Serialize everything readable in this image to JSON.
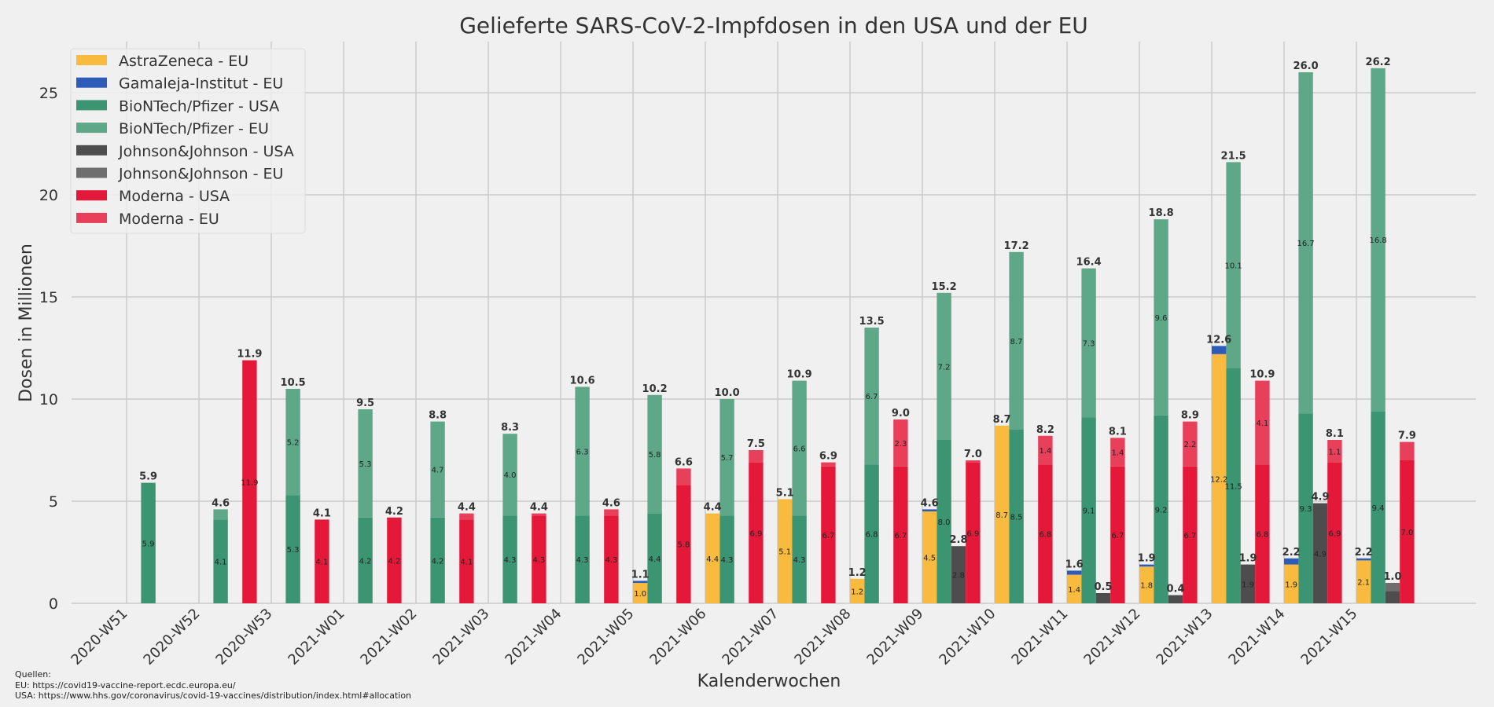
{
  "chart_data": {
    "type": "bar",
    "title": "Gelieferte SARS-CoV-2-Impfdosen in den USA und der EU",
    "xlabel": "Kalenderwochen",
    "ylabel": "Dosen in Millionen",
    "ylim": [
      0,
      27.5
    ],
    "yticks": [
      0,
      5,
      10,
      15,
      20,
      25
    ],
    "grid": true,
    "legend_position": "top-left",
    "categories": [
      "2020-W51",
      "2020-W52",
      "2020-W53",
      "2021-W01",
      "2021-W02",
      "2021-W03",
      "2021-W04",
      "2021-W05",
      "2021-W06",
      "2021-W07",
      "2021-W08",
      "2021-W09",
      "2021-W10",
      "2021-W11",
      "2021-W12",
      "2021-W13",
      "2021-W14",
      "2021-W15"
    ],
    "series": [
      {
        "name": "AstraZeneca - EU",
        "color": "#f8bb40",
        "group": "astrazeneca",
        "values": [
          0,
          0,
          0,
          0,
          0,
          0,
          0,
          1.0,
          4.4,
          5.1,
          1.2,
          4.5,
          8.7,
          1.4,
          1.8,
          12.2,
          1.9,
          2.1
        ]
      },
      {
        "name": "Gamaleja-Institut - EU",
        "color": "#2f5bb8",
        "group": "astrazeneca",
        "values": [
          0,
          0,
          0,
          0,
          0,
          0,
          0,
          0.1,
          0,
          0,
          0,
          0.1,
          0,
          0.2,
          0.1,
          0.4,
          0.3,
          0.1
        ]
      },
      {
        "name": "BioNTech/Pfizer - USA",
        "color": "#3b9472",
        "group": "biontech",
        "values": [
          5.9,
          4.1,
          5.3,
          4.2,
          4.2,
          4.3,
          4.3,
          4.4,
          4.3,
          4.3,
          6.8,
          8.0,
          8.5,
          9.1,
          9.2,
          11.5,
          9.3,
          9.4
        ]
      },
      {
        "name": "BioNTech/Pfizer - EU",
        "color": "#5ea889",
        "group": "biontech",
        "values": [
          0,
          0.5,
          5.2,
          5.3,
          4.7,
          4.0,
          6.3,
          5.8,
          5.7,
          6.6,
          6.7,
          7.2,
          8.7,
          7.3,
          9.6,
          10.1,
          16.7,
          16.8
        ]
      },
      {
        "name": "Johnson&Johnson - USA",
        "color": "#4d4d4d",
        "group": "jnj",
        "values": [
          0,
          0,
          0,
          0,
          0,
          0,
          0,
          0,
          0,
          0,
          0,
          2.8,
          0,
          0.5,
          0.4,
          1.9,
          4.9,
          0.6
        ]
      },
      {
        "name": "Johnson&Johnson - EU",
        "color": "#6e6e6e",
        "group": "jnj",
        "values": [
          0,
          0,
          0,
          0,
          0,
          0,
          0,
          0,
          0,
          0,
          0,
          0,
          0,
          0,
          0,
          0,
          0,
          0.4
        ]
      },
      {
        "name": "Moderna - USA",
        "color": "#e4193a",
        "group": "moderna",
        "values": [
          0,
          11.9,
          4.1,
          4.2,
          4.1,
          4.3,
          4.3,
          5.8,
          6.9,
          6.7,
          6.7,
          6.9,
          6.8,
          6.7,
          6.7,
          6.8,
          6.9,
          7.0
        ]
      },
      {
        "name": "Moderna - EU",
        "color": "#e8405a",
        "group": "moderna",
        "values": [
          0,
          0,
          0,
          0,
          0.3,
          0.1,
          0.3,
          0.8,
          0.6,
          0.2,
          2.3,
          0.1,
          1.4,
          1.4,
          2.2,
          4.1,
          1.1,
          0.9
        ]
      }
    ],
    "totals": {
      "astrazeneca": [
        "",
        "",
        "",
        "",
        "",
        "",
        "",
        "1.1",
        "4.4",
        "5.1",
        "1.2",
        "4.6",
        "8.7",
        "1.6",
        "1.9",
        "12.6",
        "2.2",
        "2.2"
      ],
      "biontech": [
        "5.9",
        "4.6",
        "10.5",
        "9.5",
        "8.8",
        "8.3",
        "10.6",
        "10.2",
        "10.0",
        "10.9",
        "13.5",
        "15.2",
        "17.2",
        "16.4",
        "18.8",
        "21.5",
        "26.0",
        "26.2"
      ],
      "jnj": [
        "",
        "",
        "",
        "",
        "",
        "",
        "",
        "",
        "",
        "",
        "",
        "2.8",
        "",
        "0.5",
        "0.4",
        "1.9",
        "4.9",
        "1.0"
      ],
      "moderna": [
        "",
        "11.9",
        "4.1",
        "4.2",
        "4.4",
        "4.4",
        "4.6",
        "6.6",
        "7.5",
        "6.9",
        "9.0",
        "7.0",
        "8.2",
        "8.1",
        "8.9",
        "10.9",
        "8.1",
        "7.9"
      ]
    }
  },
  "sources": {
    "heading": "Quellen:",
    "eu": "EU: https://covid19-vaccine-report.ecdc.europa.eu/",
    "usa": "USA: https://www.hhs.gov/coronavirus/covid-19-vaccines/distribution/index.html#allocation"
  }
}
